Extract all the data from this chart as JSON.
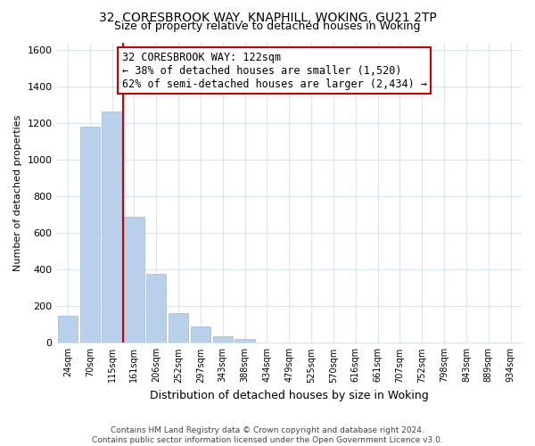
{
  "title1": "32, CORESBROOK WAY, KNAPHILL, WOKING, GU21 2TP",
  "title2": "Size of property relative to detached houses in Woking",
  "xlabel": "Distribution of detached houses by size in Woking",
  "ylabel": "Number of detached properties",
  "bar_labels": [
    "24sqm",
    "70sqm",
    "115sqm",
    "161sqm",
    "206sqm",
    "252sqm",
    "297sqm",
    "343sqm",
    "388sqm",
    "434sqm",
    "479sqm",
    "525sqm",
    "570sqm",
    "616sqm",
    "661sqm",
    "707sqm",
    "752sqm",
    "798sqm",
    "843sqm",
    "889sqm",
    "934sqm"
  ],
  "bar_values": [
    150,
    1180,
    1265,
    690,
    375,
    160,
    90,
    37,
    20,
    0,
    0,
    0,
    0,
    0,
    0,
    0,
    0,
    0,
    0,
    0,
    0
  ],
  "bar_color": "#b8d0ea",
  "bar_edge_color": "#a0b8d8",
  "property_line_x": 2.5,
  "annotation_line1": "32 CORESBROOK WAY: 122sqm",
  "annotation_line2": "← 38% of detached houses are smaller (1,520)",
  "annotation_line3": "62% of semi-detached houses are larger (2,434) →",
  "annotation_box_color": "#ffffff",
  "annotation_border_color": "#cc0000",
  "property_line_color": "#cc0000",
  "ylim": [
    0,
    1640
  ],
  "yticks": [
    0,
    200,
    400,
    600,
    800,
    1000,
    1200,
    1400,
    1600
  ],
  "footer1": "Contains HM Land Registry data © Crown copyright and database right 2024.",
  "footer2": "Contains public sector information licensed under the Open Government Licence v3.0.",
  "background_color": "#ffffff",
  "plot_background": "#ffffff",
  "grid_color": "#d8e4f0"
}
